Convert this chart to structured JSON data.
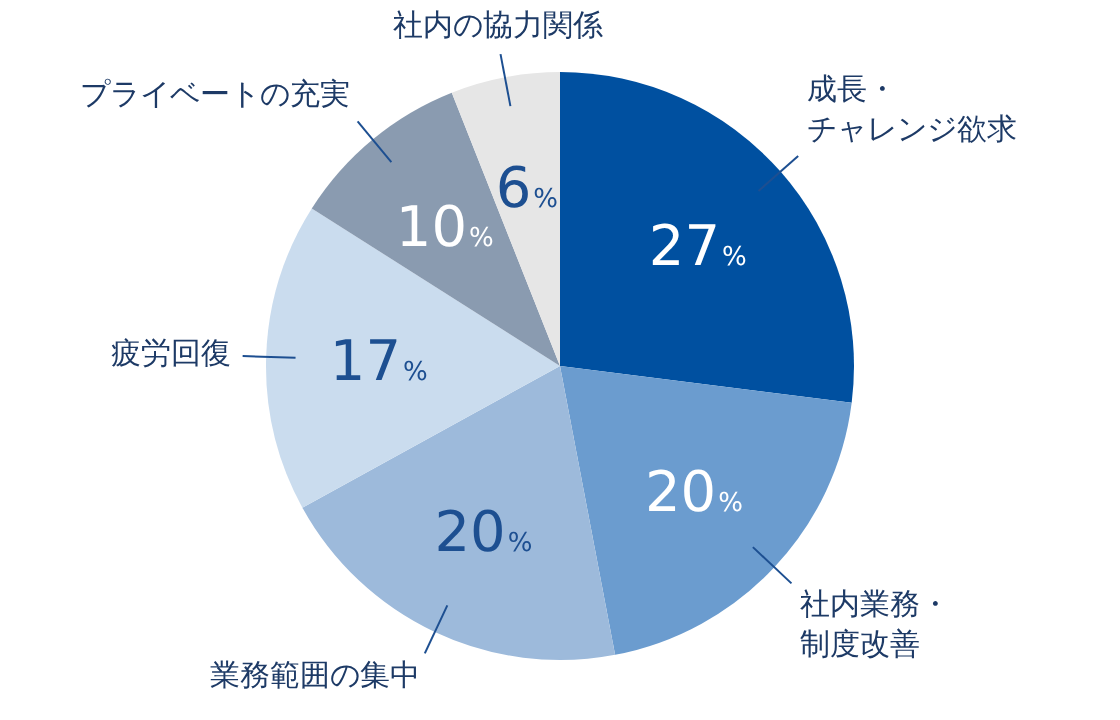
{
  "chart_data": {
    "type": "pie",
    "categories": [
      "成長・チャレンジ欲求",
      "社内業務・制度改善",
      "業務範囲の集中",
      "疲労回復",
      "プライベートの充実",
      "社内の協力関係"
    ],
    "values": [
      27,
      20,
      20,
      17,
      10,
      6
    ],
    "colors": [
      "#0050a0",
      "#6b9ccf",
      "#9dbadb",
      "#cadcee",
      "#8a9bb0",
      "#e6e6e6"
    ],
    "value_labels": [
      "27%",
      "20%",
      "20%",
      "17%",
      "10%",
      "6%"
    ],
    "legend": false
  }
}
